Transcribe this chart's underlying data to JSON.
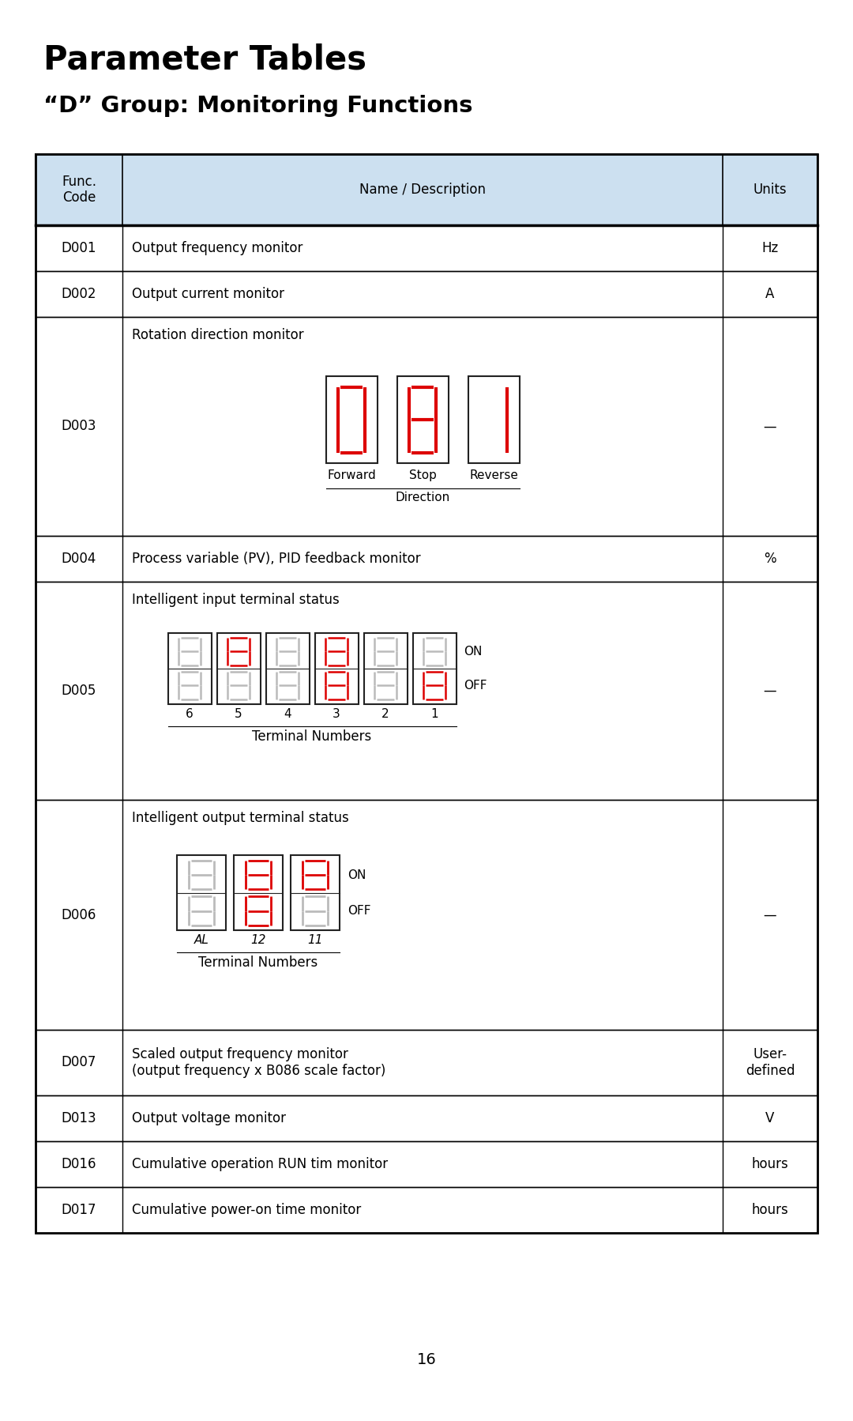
{
  "title": "Parameter Tables",
  "subtitle": "“D” Group: Monitoring Functions",
  "header_bg": "#cce0f0",
  "page_number": "16",
  "red_color": "#dd0000",
  "outline_color": "#222222",
  "bg_color": "#ffffff",
  "rows": [
    {
      "code": "D001",
      "desc": "Output frequency monitor",
      "units": "Hz",
      "image": null
    },
    {
      "code": "D002",
      "desc": "Output current monitor",
      "units": "A",
      "image": null
    },
    {
      "code": "D003",
      "desc": "Rotation direction monitor",
      "units": "—",
      "image": "d003"
    },
    {
      "code": "D004",
      "desc": "Process variable (PV), PID feedback monitor",
      "units": "%",
      "image": null
    },
    {
      "code": "D005",
      "desc": "Intelligent input terminal status",
      "units": "—",
      "image": "d005"
    },
    {
      "code": "D006",
      "desc": "Intelligent output terminal status",
      "units": "—",
      "image": "d006"
    },
    {
      "code": "D007",
      "desc": "Scaled output frequency monitor\n(output frequency x B086 scale factor)",
      "units": "User-\ndefined",
      "image": null
    },
    {
      "code": "D013",
      "desc": "Output voltage monitor",
      "units": "V",
      "image": null
    },
    {
      "code": "D016",
      "desc": "Cumulative operation RUN tim monitor",
      "units": "hours",
      "image": null
    },
    {
      "code": "D017",
      "desc": "Cumulative power-on time monitor",
      "units": "hours",
      "image": null
    }
  ]
}
